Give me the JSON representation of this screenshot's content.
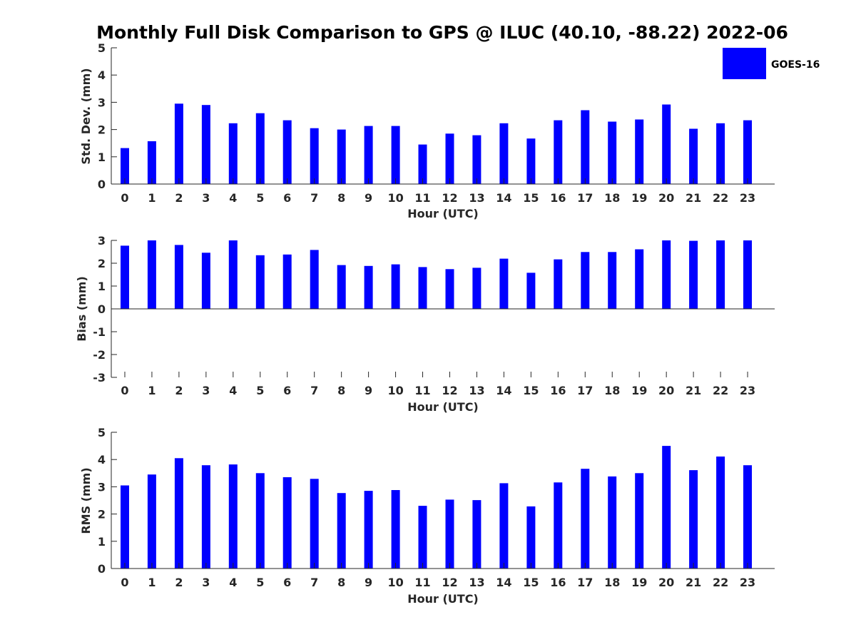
{
  "title": "Monthly Full Disk Comparison to GPS @ ILUC (40.10, -88.22) 2022-06",
  "legend": {
    "label": "GOES-16",
    "color": "#0000ff",
    "position": "top-right"
  },
  "colors": {
    "bar": "#0000ff",
    "axis": "#262626",
    "background": "#ffffff"
  },
  "chart_data": [
    {
      "type": "bar",
      "ylabel": "Std. Dev. (mm)",
      "xlabel": "Hour (UTC)",
      "ylim": [
        0,
        5
      ],
      "yticks": [
        "0",
        "1",
        "2",
        "3",
        "4",
        "5"
      ],
      "grid": false,
      "categories": [
        "0",
        "1",
        "2",
        "3",
        "4",
        "5",
        "6",
        "7",
        "8",
        "9",
        "10",
        "11",
        "12",
        "13",
        "14",
        "15",
        "16",
        "17",
        "18",
        "19",
        "20",
        "21",
        "22",
        "23"
      ],
      "series": [
        {
          "name": "GOES-16",
          "values": [
            1.32,
            1.57,
            2.95,
            2.9,
            2.23,
            2.6,
            2.34,
            2.05,
            2.0,
            2.13,
            2.13,
            1.45,
            1.85,
            1.79,
            2.23,
            1.67,
            2.34,
            2.71,
            2.29,
            2.37,
            2.92,
            2.03,
            2.23,
            2.34
          ]
        }
      ]
    },
    {
      "type": "bar",
      "ylabel": "Bias (mm)",
      "xlabel": "Hour (UTC)",
      "ylim": [
        -3,
        3
      ],
      "yticks": [
        "-3",
        "-2",
        "-1",
        "0",
        "1",
        "2",
        "3"
      ],
      "grid": false,
      "categories": [
        "0",
        "1",
        "2",
        "3",
        "4",
        "5",
        "6",
        "7",
        "8",
        "9",
        "10",
        "11",
        "12",
        "13",
        "14",
        "15",
        "16",
        "17",
        "18",
        "19",
        "20",
        "21",
        "22",
        "23"
      ],
      "series": [
        {
          "name": "GOES-16",
          "values": [
            2.77,
            3.0,
            2.8,
            2.46,
            3.0,
            2.35,
            2.38,
            2.58,
            1.92,
            1.88,
            1.95,
            1.83,
            1.74,
            1.8,
            2.2,
            1.58,
            2.17,
            2.49,
            2.49,
            2.61,
            3.0,
            2.98,
            3.0,
            3.0
          ]
        }
      ]
    },
    {
      "type": "bar",
      "ylabel": "RMS (mm)",
      "xlabel": "Hour (UTC)",
      "ylim": [
        0,
        5
      ],
      "yticks": [
        "0",
        "1",
        "2",
        "3",
        "4",
        "5"
      ],
      "grid": false,
      "categories": [
        "0",
        "1",
        "2",
        "3",
        "4",
        "5",
        "6",
        "7",
        "8",
        "9",
        "10",
        "11",
        "12",
        "13",
        "14",
        "15",
        "16",
        "17",
        "18",
        "19",
        "20",
        "21",
        "22",
        "23"
      ],
      "series": [
        {
          "name": "GOES-16",
          "values": [
            3.05,
            3.45,
            4.05,
            3.79,
            3.82,
            3.5,
            3.35,
            3.29,
            2.77,
            2.85,
            2.88,
            2.3,
            2.53,
            2.51,
            3.13,
            2.28,
            3.16,
            3.66,
            3.38,
            3.5,
            4.5,
            3.61,
            4.11,
            3.79
          ]
        }
      ]
    }
  ]
}
